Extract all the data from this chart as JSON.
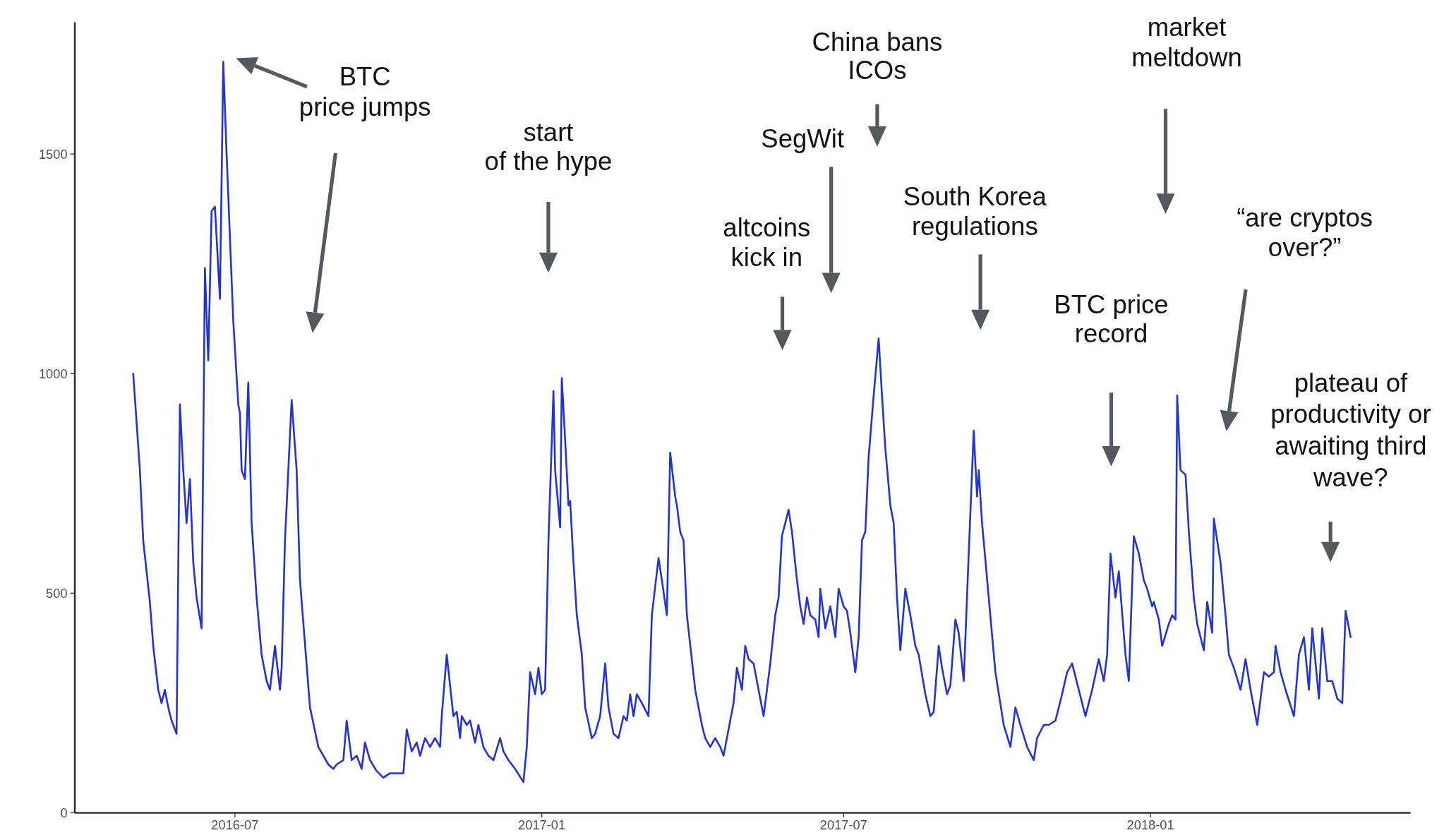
{
  "chart_data": {
    "type": "line",
    "xlim": [
      "2016-03-27",
      "2018-06-06"
    ],
    "ylim": [
      0,
      1800
    ],
    "xticks": [
      {
        "value": "2016-07-01",
        "label": "2016-07"
      },
      {
        "value": "2017-01-01",
        "label": "2017-01"
      },
      {
        "value": "2017-07-01",
        "label": "2017-07"
      },
      {
        "value": "2018-01-01",
        "label": "2018-01"
      }
    ],
    "yticks": [
      0,
      500,
      1000,
      1500
    ],
    "grid": false,
    "annotations": [
      "BTC\nprice jumps",
      "start\nof the hype",
      "altcoins\nkick in",
      "SegWit",
      "China bans\nICOs",
      "South Korea\nregulations",
      "BTC price\nrecord",
      "market\nmeltdown",
      "“are cryptos\nover?”",
      "plateau of\nproductivity or\nawaiting third\nwave?"
    ],
    "x": [
      "2016-05-01",
      "2016-05-05",
      "2016-05-07",
      "2016-05-11",
      "2016-05-13",
      "2016-05-16",
      "2016-05-18",
      "2016-05-20",
      "2016-05-22",
      "2016-05-24",
      "2016-05-27",
      "2016-05-29",
      "2016-05-31",
      "2016-06-02",
      "2016-06-04",
      "2016-06-06",
      "2016-06-08",
      "2016-06-11",
      "2016-06-13",
      "2016-06-15",
      "2016-06-17",
      "2016-06-19",
      "2016-06-22",
      "2016-06-24",
      "2016-06-26",
      "2016-06-28",
      "2016-06-30",
      "2016-07-03",
      "2016-07-04",
      "2016-07-05",
      "2016-07-07",
      "2016-07-09",
      "2016-07-11",
      "2016-07-14",
      "2016-07-17",
      "2016-07-20",
      "2016-07-22",
      "2016-07-25",
      "2016-07-28",
      "2016-07-29",
      "2016-07-31",
      "2016-08-04",
      "2016-08-07",
      "2016-08-09",
      "2016-08-15",
      "2016-08-20",
      "2016-08-26",
      "2016-08-29",
      "2016-08-31",
      "2016-09-04",
      "2016-09-06",
      "2016-09-09",
      "2016-09-12",
      "2016-09-15",
      "2016-09-17",
      "2016-09-20",
      "2016-09-24",
      "2016-09-28",
      "2016-10-02",
      "2016-10-06",
      "2016-10-10",
      "2016-10-12",
      "2016-10-15",
      "2016-10-18",
      "2016-10-20",
      "2016-10-23",
      "2016-10-26",
      "2016-10-29",
      "2016-11-01",
      "2016-11-02",
      "2016-11-05",
      "2016-11-07",
      "2016-11-09",
      "2016-11-11",
      "2016-11-13",
      "2016-11-14",
      "2016-11-17",
      "2016-11-19",
      "2016-11-22",
      "2016-11-24",
      "2016-11-27",
      "2016-11-30",
      "2016-12-03",
      "2016-12-07",
      "2016-12-09",
      "2016-12-12",
      "2016-12-16",
      "2016-12-21",
      "2016-12-23",
      "2016-12-25",
      "2016-12-28",
      "2016-12-30",
      "2017-01-01",
      "2017-01-03",
      "2017-01-05",
      "2017-01-08",
      "2017-01-09",
      "2017-01-12",
      "2017-01-13",
      "2017-01-15",
      "2017-01-17",
      "2017-01-18",
      "2017-01-20",
      "2017-01-22",
      "2017-01-25",
      "2017-01-27",
      "2017-01-31",
      "2017-02-02",
      "2017-02-05",
      "2017-02-08",
      "2017-02-10",
      "2017-02-13",
      "2017-02-16",
      "2017-02-19",
      "2017-02-21",
      "2017-02-23",
      "2017-02-25",
      "2017-02-27",
      "2017-03-02",
      "2017-03-06",
      "2017-03-08",
      "2017-03-12",
      "2017-03-14",
      "2017-03-17",
      "2017-03-19",
      "2017-03-22",
      "2017-03-23",
      "2017-03-25",
      "2017-03-27",
      "2017-03-29",
      "2017-04-03",
      "2017-04-07",
      "2017-04-09",
      "2017-04-12",
      "2017-04-15",
      "2017-04-18",
      "2017-04-20",
      "2017-04-26",
      "2017-04-28",
      "2017-05-01",
      "2017-05-03",
      "2017-05-05",
      "2017-05-08",
      "2017-05-11",
      "2017-05-14",
      "2017-05-18",
      "2017-05-21",
      "2017-05-23",
      "2017-05-25",
      "2017-05-29",
      "2017-05-31",
      "2017-06-03",
      "2017-06-05",
      "2017-06-07",
      "2017-06-09",
      "2017-06-11",
      "2017-06-14",
      "2017-06-16",
      "2017-06-17",
      "2017-06-20",
      "2017-06-23",
      "2017-06-26",
      "2017-06-28",
      "2017-07-01",
      "2017-07-03",
      "2017-07-05",
      "2017-07-08",
      "2017-07-10",
      "2017-07-12",
      "2017-07-14",
      "2017-07-16",
      "2017-07-19",
      "2017-07-22",
      "2017-07-24",
      "2017-07-26",
      "2017-07-29",
      "2017-07-31",
      "2017-08-02",
      "2017-08-04",
      "2017-08-07",
      "2017-08-10",
      "2017-08-13",
      "2017-08-15",
      "2017-08-19",
      "2017-08-22",
      "2017-08-24",
      "2017-08-27",
      "2017-08-29",
      "2017-09-01",
      "2017-09-03",
      "2017-09-06",
      "2017-09-08",
      "2017-09-11",
      "2017-09-14",
      "2017-09-17",
      "2017-09-19",
      "2017-09-20",
      "2017-09-22",
      "2017-09-26",
      "2017-09-30",
      "2017-10-05",
      "2017-10-09",
      "2017-10-12",
      "2017-10-15",
      "2017-10-19",
      "2017-10-23",
      "2017-10-25",
      "2017-10-29",
      "2017-11-01",
      "2017-11-05",
      "2017-11-09",
      "2017-11-12",
      "2017-11-15",
      "2017-11-19",
      "2017-11-23",
      "2017-11-27",
      "2017-12-01",
      "2017-12-04",
      "2017-12-06",
      "2017-12-08",
      "2017-12-11",
      "2017-12-13",
      "2017-12-17",
      "2017-12-19",
      "2017-12-22",
      "2017-12-25",
      "2017-12-28",
      "2017-12-30",
      "2018-01-02",
      "2018-01-03",
      "2018-01-06",
      "2018-01-08",
      "2018-01-12",
      "2018-01-14",
      "2018-01-16",
      "2018-01-17",
      "2018-01-19",
      "2018-01-22",
      "2018-01-24",
      "2018-01-27",
      "2018-01-29",
      "2018-02-02",
      "2018-02-04",
      "2018-02-07",
      "2018-02-08",
      "2018-02-12",
      "2018-02-15",
      "2018-02-17",
      "2018-02-20",
      "2018-02-24",
      "2018-02-27",
      "2018-03-02",
      "2018-03-06",
      "2018-03-10",
      "2018-03-13",
      "2018-03-16",
      "2018-03-17",
      "2018-03-20",
      "2018-03-23",
      "2018-03-28",
      "2018-03-31",
      "2018-04-03",
      "2018-04-06",
      "2018-04-08",
      "2018-04-12",
      "2018-04-14",
      "2018-04-17",
      "2018-04-20",
      "2018-04-23",
      "2018-04-26",
      "2018-04-28",
      "2018-05-01"
    ],
    "series": [
      {
        "color": "#2233dd",
        "values": [
          1000,
          780,
          620,
          480,
          380,
          280,
          250,
          280,
          240,
          210,
          180,
          930,
          780,
          660,
          760,
          570,
          490,
          420,
          1240,
          1030,
          1370,
          1380,
          1170,
          1710,
          1500,
          1310,
          1120,
          930,
          910,
          780,
          760,
          980,
          660,
          490,
          360,
          300,
          280,
          380,
          280,
          330,
          620,
          940,
          780,
          530,
          240,
          150,
          110,
          100,
          110,
          120,
          210,
          120,
          130,
          100,
          160,
          120,
          95,
          80,
          90,
          90,
          90,
          190,
          140,
          160,
          130,
          170,
          150,
          170,
          150,
          220,
          360,
          290,
          220,
          230,
          170,
          220,
          200,
          210,
          160,
          200,
          150,
          130,
          120,
          170,
          140,
          120,
          100,
          70,
          150,
          320,
          270,
          330,
          270,
          280,
          620,
          960,
          780,
          650,
          990,
          850,
          700,
          710,
          570,
          450,
          360,
          240,
          170,
          180,
          220,
          340,
          240,
          180,
          170,
          220,
          210,
          270,
          220,
          270,
          250,
          220,
          450,
          580,
          530,
          450,
          820,
          720,
          700,
          640,
          620,
          450,
          280,
          200,
          170,
          150,
          170,
          150,
          130,
          250,
          330,
          280,
          380,
          350,
          340,
          280,
          220,
          340,
          450,
          490,
          630,
          690,
          640,
          530,
          470,
          430,
          490,
          450,
          440,
          400,
          510,
          420,
          470,
          400,
          510,
          470,
          460,
          410,
          320,
          400,
          620,
          640,
          810,
          950,
          1080,
          950,
          830,
          700,
          660,
          490,
          370,
          510,
          450,
          380,
          360,
          270,
          220,
          230,
          380,
          330,
          270,
          290,
          440,
          410,
          300,
          590,
          870,
          720,
          780,
          660,
          490,
          320,
          200,
          150,
          240,
          200,
          150,
          120,
          170,
          200,
          200,
          210,
          270,
          320,
          340,
          280,
          220,
          280,
          350,
          300,
          360,
          590,
          490,
          550,
          360,
          300,
          630,
          590,
          530,
          510,
          470,
          480,
          440,
          380,
          430,
          450,
          440,
          950,
          780,
          770,
          640,
          490,
          430,
          370,
          480,
          410,
          670,
          570,
          450,
          360,
          330,
          280,
          350,
          280,
          200,
          320,
          310,
          320,
          380,
          320,
          280,
          220,
          360,
          400,
          280,
          420,
          260,
          420,
          300,
          300,
          260,
          250,
          460,
          400
        ]
      }
    ]
  }
}
